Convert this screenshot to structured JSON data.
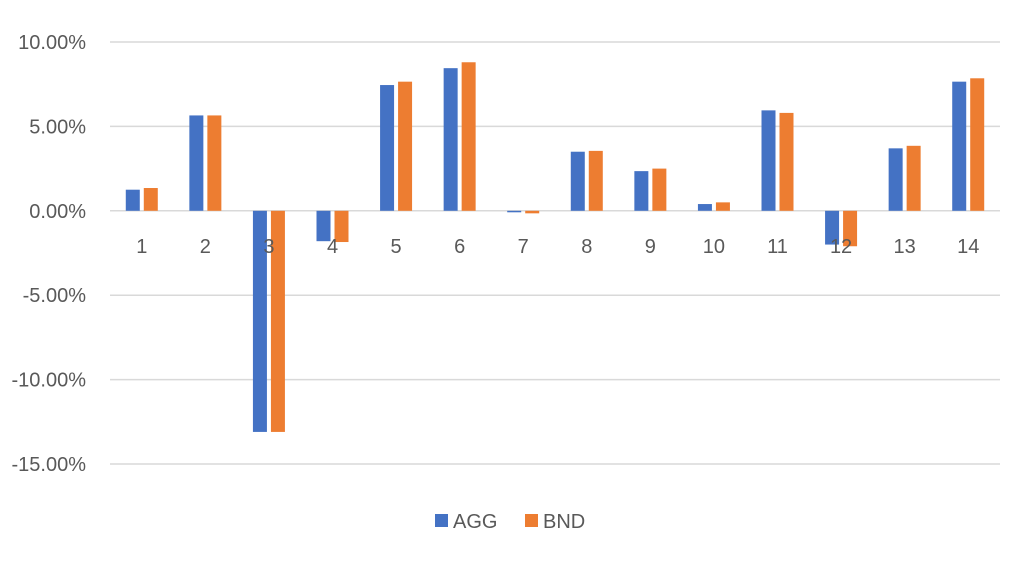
{
  "chart_data": {
    "type": "bar",
    "title": "",
    "xlabel": "",
    "ylabel": "",
    "categories": [
      "1",
      "2",
      "3",
      "4",
      "5",
      "6",
      "7",
      "8",
      "9",
      "10",
      "11",
      "12",
      "13",
      "14"
    ],
    "series": [
      {
        "name": "AGG",
        "color": "#4472C4",
        "values": [
          1.25,
          5.65,
          -13.1,
          -1.8,
          7.45,
          8.45,
          0.0,
          3.5,
          2.35,
          0.4,
          5.95,
          -2.0,
          3.7,
          7.65
        ]
      },
      {
        "name": "BND",
        "color": "#ED7D31",
        "values": [
          1.35,
          5.65,
          -13.1,
          -1.85,
          7.65,
          8.8,
          -0.15,
          3.55,
          2.5,
          0.5,
          5.8,
          -2.1,
          3.85,
          7.85
        ]
      }
    ],
    "ylim": [
      -15,
      10
    ],
    "y_ticks": [
      10,
      5,
      0,
      -5,
      -10,
      -15
    ],
    "y_tick_labels": [
      "10.00%",
      "5.00%",
      "0.00%",
      "-5.00%",
      "-10.00%",
      "-15.00%"
    ],
    "grid": true,
    "legend": "bottom-center"
  }
}
